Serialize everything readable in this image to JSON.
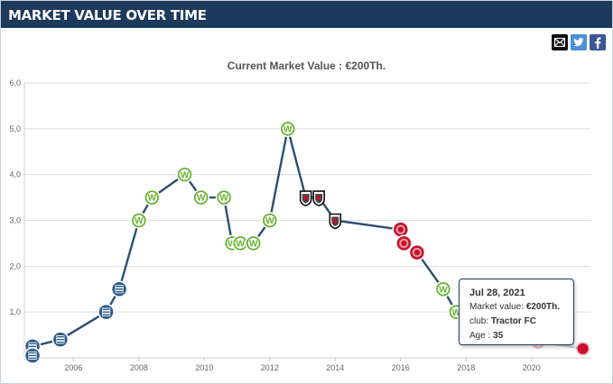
{
  "header": {
    "title": "MARKET VALUE OVER TIME"
  },
  "share": [
    {
      "icon": "email-icon",
      "color": "#111111"
    },
    {
      "icon": "twitter-icon",
      "color": "#4a90d9"
    },
    {
      "icon": "facebook-icon",
      "color": "#3b5998"
    }
  ],
  "chart_title": "Current Market Value : €200Th.",
  "tooltip": {
    "date": "Jul 28, 2021",
    "value_label": "Market value:",
    "value": "€200Th.",
    "club_label": "club:",
    "club": "Tractor FC",
    "age_label": "Age :",
    "age": "35"
  },
  "chart_data": {
    "type": "line",
    "title": "Current Market Value : €200Th.",
    "xlabel": "",
    "ylabel": "",
    "x_ticks": [
      "2006",
      "2008",
      "2010",
      "2012",
      "2014",
      "2016",
      "2018",
      "2020"
    ],
    "y_ticks": [
      "0",
      "1,0",
      "2,0",
      "3,0",
      "4,0",
      "5,0",
      "6,0"
    ],
    "ylim": [
      0,
      6
    ],
    "xlim": [
      2004.5,
      2021.8
    ],
    "grid": true,
    "colors": {
      "line": "#2c4f73",
      "grid": "#dddddd",
      "hertha": "#2e5c8a",
      "wolfsburg": "#65b32e",
      "fulham": "#111111",
      "tractor": "#c8102e"
    },
    "series": [
      {
        "values": [
          {
            "x": 2004.75,
            "y": 0.25,
            "club": "hertha"
          },
          {
            "x": 2004.75,
            "y": 0.05,
            "club": "hertha"
          },
          {
            "x": 2004.75,
            "y": 0.25,
            "club": "hertha"
          },
          {
            "x": 2005.6,
            "y": 0.4,
            "club": "hertha"
          },
          {
            "x": 2007.0,
            "y": 1.0,
            "club": "hertha"
          },
          {
            "x": 2007.4,
            "y": 1.5,
            "club": "hertha"
          },
          {
            "x": 2008.0,
            "y": 3.0,
            "club": "wolfsburg"
          },
          {
            "x": 2008.4,
            "y": 3.5,
            "club": "wolfsburg"
          },
          {
            "x": 2009.4,
            "y": 4.0,
            "club": "wolfsburg"
          },
          {
            "x": 2009.9,
            "y": 3.5,
            "club": "wolfsburg"
          },
          {
            "x": 2010.6,
            "y": 3.5,
            "club": "wolfsburg"
          },
          {
            "x": 2010.85,
            "y": 2.5,
            "club": "wolfsburg"
          },
          {
            "x": 2011.1,
            "y": 2.5,
            "club": "wolfsburg"
          },
          {
            "x": 2011.5,
            "y": 2.5,
            "club": "wolfsburg"
          },
          {
            "x": 2012.0,
            "y": 3.0,
            "club": "wolfsburg"
          },
          {
            "x": 2012.55,
            "y": 5.0,
            "club": "wolfsburg"
          },
          {
            "x": 2013.1,
            "y": 3.5,
            "club": "fulham"
          },
          {
            "x": 2013.5,
            "y": 3.5,
            "club": "fulham"
          },
          {
            "x": 2014.0,
            "y": 3.0,
            "club": "fulham"
          },
          {
            "x": 2016.0,
            "y": 2.8,
            "club": "tractor"
          },
          {
            "x": 2016.1,
            "y": 2.5,
            "club": "tractor"
          },
          {
            "x": 2016.5,
            "y": 2.3,
            "club": "tractor"
          },
          {
            "x": 2017.3,
            "y": 1.5,
            "club": "wolfsburg"
          },
          {
            "x": 2017.7,
            "y": 1.0,
            "club": "wolfsburg"
          },
          {
            "x": 2018.0,
            "y": 0.85,
            "club": "wolfsburg"
          },
          {
            "x": 2018.6,
            "y": 0.6,
            "club": "tractor"
          },
          {
            "x": 2019.4,
            "y": 0.5,
            "club": "tractor"
          },
          {
            "x": 2020.2,
            "y": 0.35,
            "club": "tractor"
          },
          {
            "x": 2021.57,
            "y": 0.2,
            "club": "tractor"
          }
        ]
      }
    ]
  }
}
